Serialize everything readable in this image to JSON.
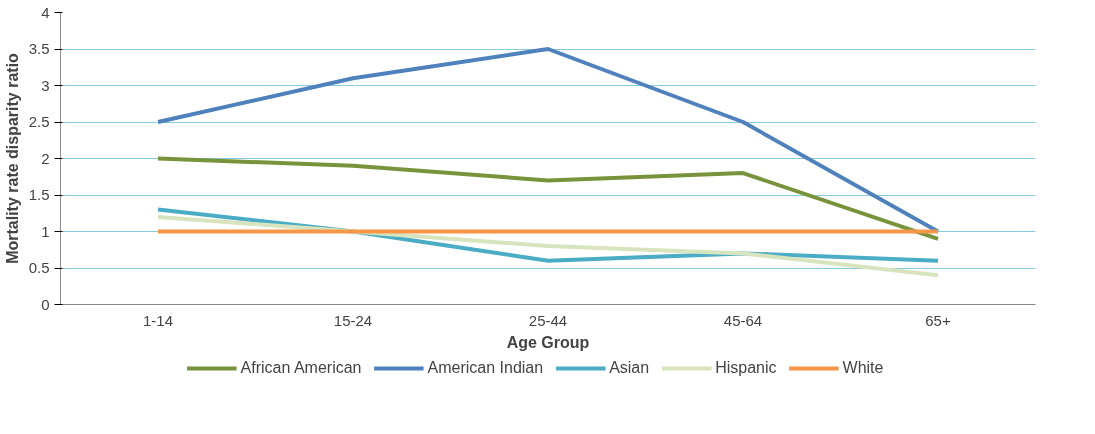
{
  "chart_data": {
    "type": "line",
    "xlabel": "Age Group",
    "ylabel": "Mortality rate disparity ratio",
    "categories": [
      "1-14",
      "15-24",
      "25-44",
      "45-64",
      "65+"
    ],
    "series": [
      {
        "name": "African American",
        "color": "#77933c",
        "values": [
          2.0,
          1.9,
          1.7,
          1.8,
          0.9
        ]
      },
      {
        "name": "American Indian",
        "color": "#4f81bd",
        "values": [
          2.5,
          3.1,
          3.5,
          2.5,
          1.0
        ]
      },
      {
        "name": "Asian",
        "color": "#4bacc6",
        "values": [
          1.3,
          1.0,
          0.6,
          0.7,
          0.6
        ]
      },
      {
        "name": "Hispanic",
        "color": "#d7e4bd",
        "values": [
          1.2,
          1.0,
          0.8,
          0.7,
          0.4
        ]
      },
      {
        "name": "White",
        "color": "#f79646",
        "values": [
          1,
          1,
          1,
          1,
          1
        ]
      }
    ],
    "ylim": [
      0,
      4
    ],
    "yticks": [
      0,
      0.5,
      1,
      1.5,
      2,
      2.5,
      3,
      3.5,
      4
    ],
    "grid": "y",
    "legend": "bottom",
    "marker": "none",
    "line_style": "solid"
  }
}
